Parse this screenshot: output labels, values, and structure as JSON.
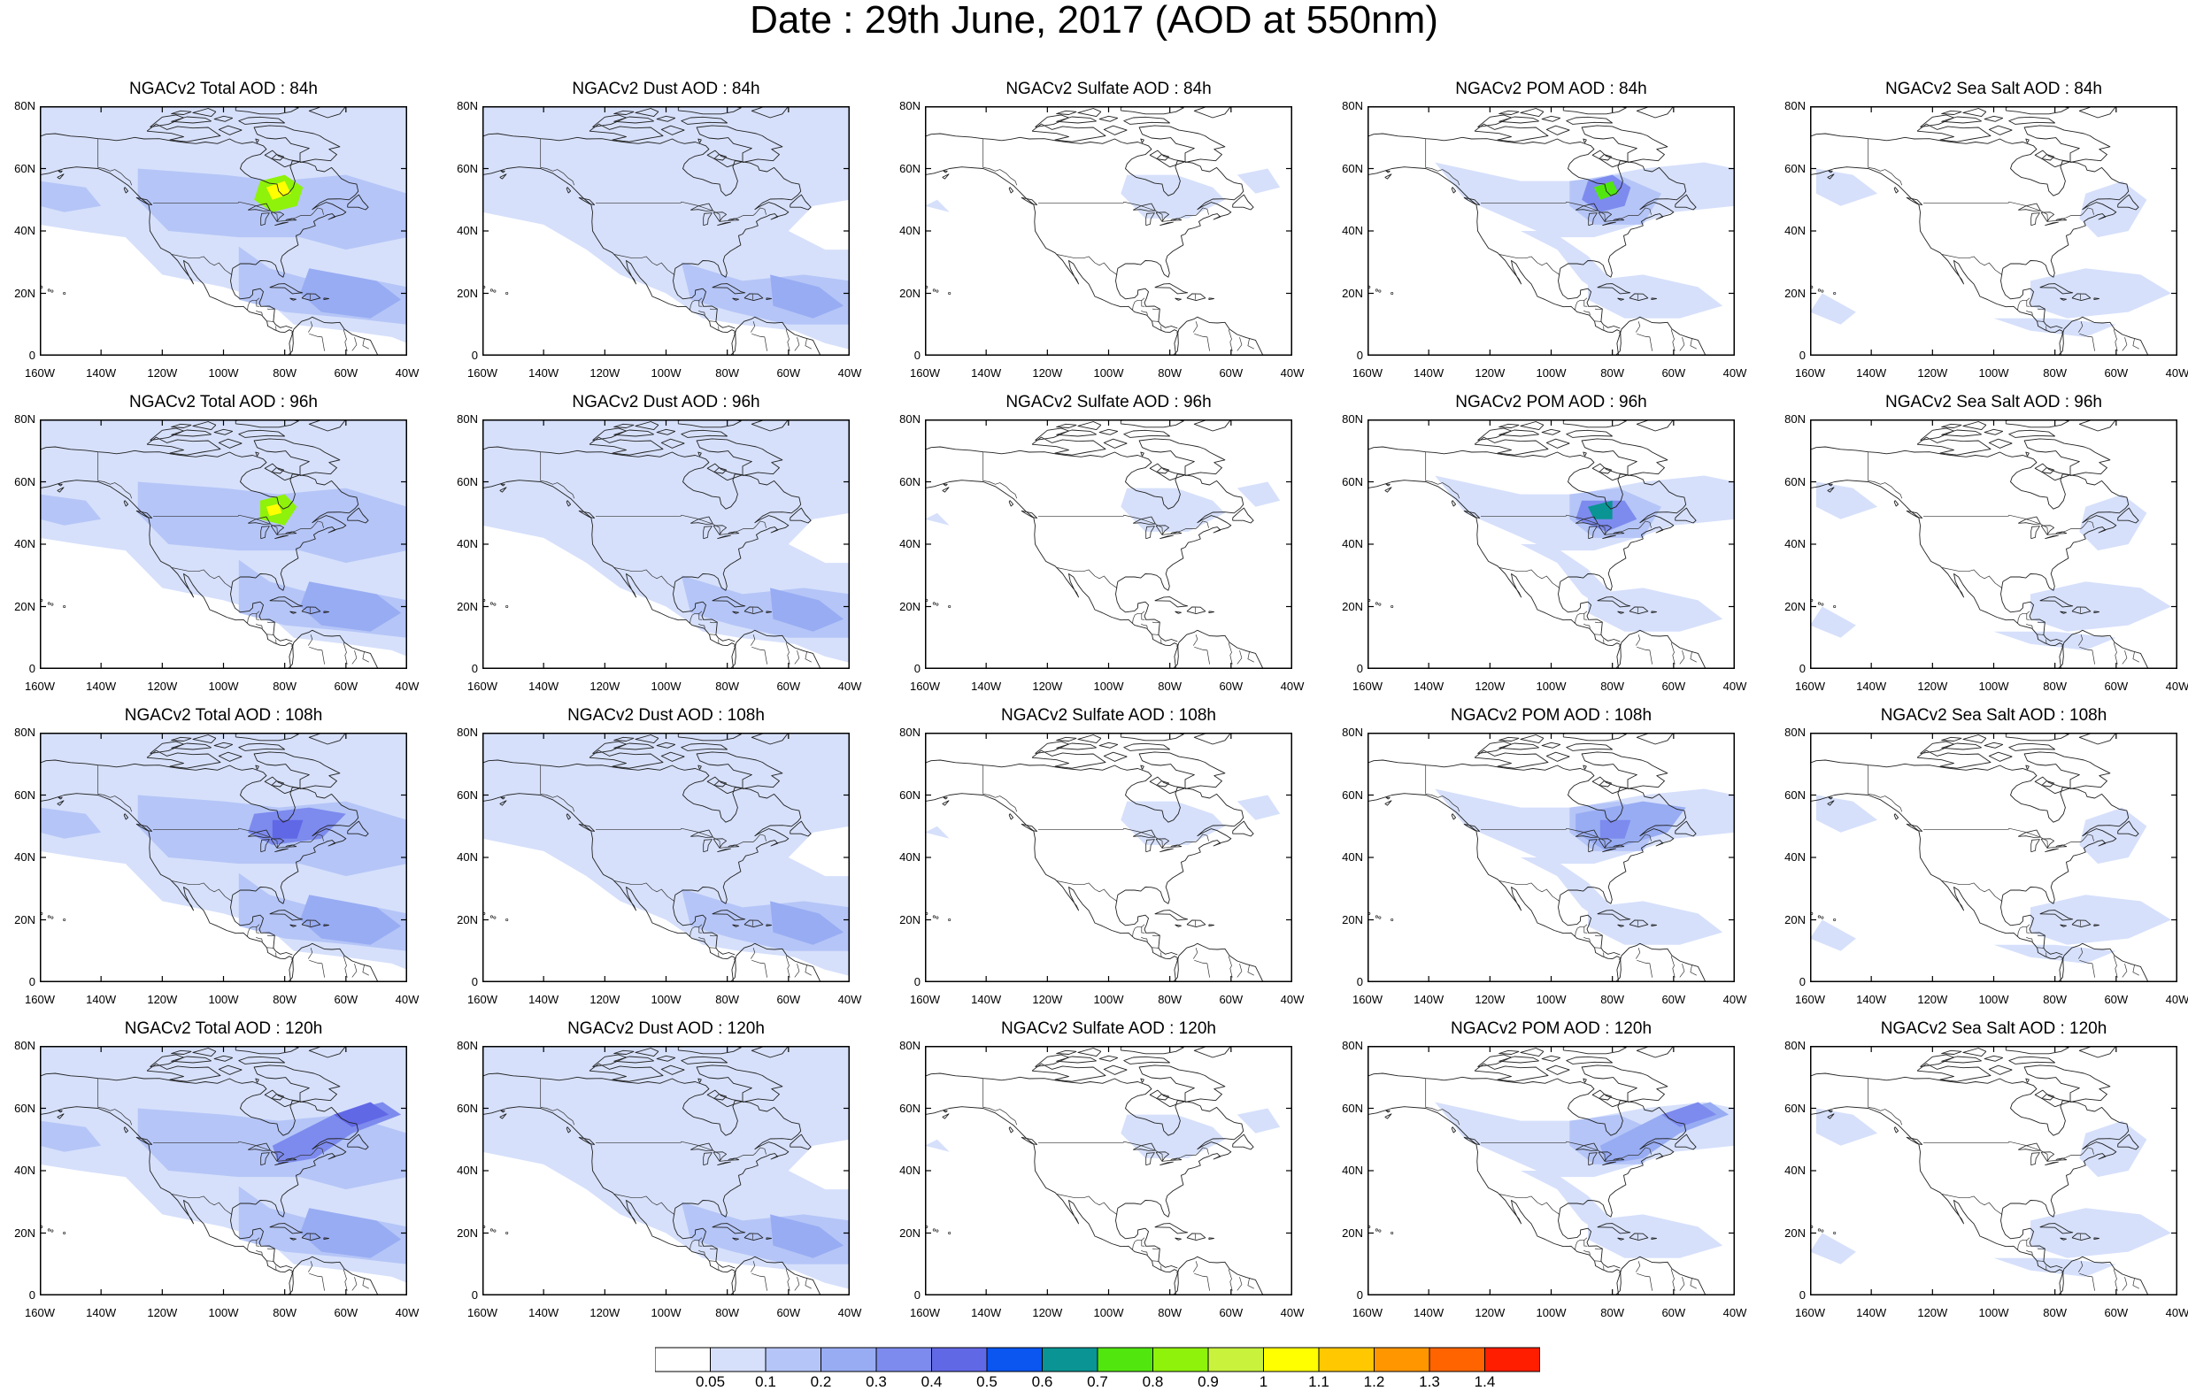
{
  "title": "Date : 29th June, 2017 (AOD at 550nm)",
  "axes": {
    "lat_ticks": [
      "80N",
      "60N",
      "40N",
      "20N",
      "0"
    ],
    "lon_ticks": [
      "160W",
      "140W",
      "120W",
      "100W",
      "80W",
      "60W",
      "40W"
    ]
  },
  "rows": [
    {
      "hour": "84h",
      "panels": [
        {
          "title": "NGACv2 Total AOD : 84h",
          "species": "total"
        },
        {
          "title": "NGACv2 Dust AOD : 84h",
          "species": "dust"
        },
        {
          "title": "NGACv2 Sulfate AOD : 84h",
          "species": "sulfate"
        },
        {
          "title": "NGACv2 POM AOD : 84h",
          "species": "pom"
        },
        {
          "title": "NGACv2 Sea Salt AOD : 84h",
          "species": "seasalt"
        }
      ]
    },
    {
      "hour": "96h",
      "panels": [
        {
          "title": "NGACv2 Total AOD : 96h",
          "species": "total"
        },
        {
          "title": "NGACv2 Dust AOD : 96h",
          "species": "dust"
        },
        {
          "title": "NGACv2 Sulfate AOD : 96h",
          "species": "sulfate"
        },
        {
          "title": "NGACv2 POM AOD : 96h",
          "species": "pom"
        },
        {
          "title": "NGACv2 Sea Salt AOD : 96h",
          "species": "seasalt"
        }
      ]
    },
    {
      "hour": "108h",
      "panels": [
        {
          "title": "NGACv2 Total AOD : 108h",
          "species": "total"
        },
        {
          "title": "NGACv2 Dust AOD : 108h",
          "species": "dust"
        },
        {
          "title": "NGACv2 Sulfate AOD : 108h",
          "species": "sulfate"
        },
        {
          "title": "NGACv2 POM AOD : 108h",
          "species": "pom"
        },
        {
          "title": "NGACv2 Sea Salt AOD : 108h",
          "species": "seasalt"
        }
      ]
    },
    {
      "hour": "120h",
      "panels": [
        {
          "title": "NGACv2 Total AOD : 120h",
          "species": "total"
        },
        {
          "title": "NGACv2 Dust AOD : 120h",
          "species": "dust"
        },
        {
          "title": "NGACv2 Sulfate AOD : 120h",
          "species": "sulfate"
        },
        {
          "title": "NGACv2 POM AOD : 120h",
          "species": "pom"
        },
        {
          "title": "NGACv2 Sea Salt  AOD : 120h",
          "species": "seasalt"
        }
      ]
    }
  ],
  "colorbar": {
    "labels": [
      "0.05",
      "0.1",
      "0.2",
      "0.3",
      "0.4",
      "0.5",
      "0.6",
      "0.7",
      "0.8",
      "0.9",
      "1",
      "1.1",
      "1.2",
      "1.3",
      "1.4"
    ],
    "colors": [
      "#ffffff",
      "#d6e0fb",
      "#b5c5f7",
      "#98acf3",
      "#7d8bee",
      "#6168e6",
      "#0b55f0",
      "#0a9494",
      "#52e60f",
      "#8ef20a",
      "#c8f23c",
      "#ffff00",
      "#ffc800",
      "#ff9600",
      "#ff6400",
      "#ff1e00"
    ]
  }
}
